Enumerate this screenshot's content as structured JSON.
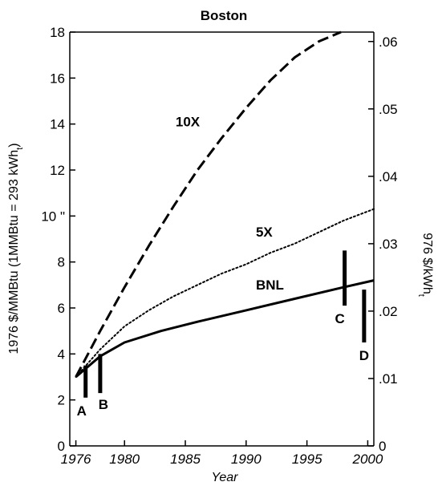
{
  "chart_data": {
    "type": "line",
    "title": "Boston",
    "xlabel": "Year",
    "ylabel": "1976 $/MMBtu (1MMBtu = 293 kWh",
    "ylabel_subscript": "t",
    "ylabel_close": ")",
    "y2label": "976 $/kWh",
    "y2label_subscript": "t",
    "xlim": [
      1975.5,
      2000.5
    ],
    "ylim": [
      0,
      18
    ],
    "y2lim": [
      0,
      0.0614
    ],
    "x_ticks": [
      1976,
      1980,
      1985,
      1990,
      1995,
      2000
    ],
    "x_tick_labels": [
      "1976",
      "1980",
      "1985",
      "1990",
      "1995",
      "2000"
    ],
    "y_ticks": [
      0,
      2,
      4,
      6,
      8,
      10,
      12,
      14,
      16,
      18
    ],
    "y_tick_labels": [
      "0",
      "2",
      "4",
      "6",
      "8",
      "10 \"",
      "12",
      "14",
      "16",
      "18"
    ],
    "y2_ticks": [
      0,
      0.01,
      0.02,
      0.03,
      0.04,
      0.05,
      0.06
    ],
    "y2_tick_labels": [
      "0",
      ".01",
      ".02",
      ".03",
      ".04",
      ".05",
      ".06"
    ],
    "grid": false,
    "series": [
      {
        "name": "10X",
        "style": "dashed",
        "x": [
          1976,
          1978,
          1980,
          1982,
          1984,
          1986,
          1988,
          1990,
          1992,
          1994,
          1996,
          1997.8
        ],
        "values": [
          3.0,
          5.0,
          6.9,
          8.7,
          10.4,
          12.0,
          13.4,
          14.7,
          15.9,
          16.9,
          17.6,
          18.0
        ]
      },
      {
        "name": "5X",
        "style": "dotted",
        "x": [
          1976,
          1978,
          1980,
          1982,
          1984,
          1986,
          1988,
          1990,
          1992,
          1994,
          1996,
          1998,
          2000.5
        ],
        "values": [
          3.0,
          4.2,
          5.2,
          5.9,
          6.5,
          7.0,
          7.5,
          7.9,
          8.4,
          8.8,
          9.3,
          9.8,
          10.3
        ]
      },
      {
        "name": "BNL",
        "style": "solid",
        "x": [
          1976,
          1978,
          1980,
          1983,
          1986,
          1990,
          1994,
          1998,
          2000.5
        ],
        "values": [
          3.0,
          3.9,
          4.5,
          5.0,
          5.4,
          5.9,
          6.4,
          6.9,
          7.2
        ]
      }
    ],
    "ranges": [
      {
        "label": "A",
        "x": 1976.8,
        "low": 2.1,
        "high": 3.5
      },
      {
        "label": "B",
        "x": 1978.0,
        "low": 2.3,
        "high": 4.0
      },
      {
        "label": "C",
        "x": 1998.1,
        "low": 6.1,
        "high": 8.5
      },
      {
        "label": "D",
        "x": 1999.7,
        "low": 4.5,
        "high": 6.8
      }
    ]
  }
}
